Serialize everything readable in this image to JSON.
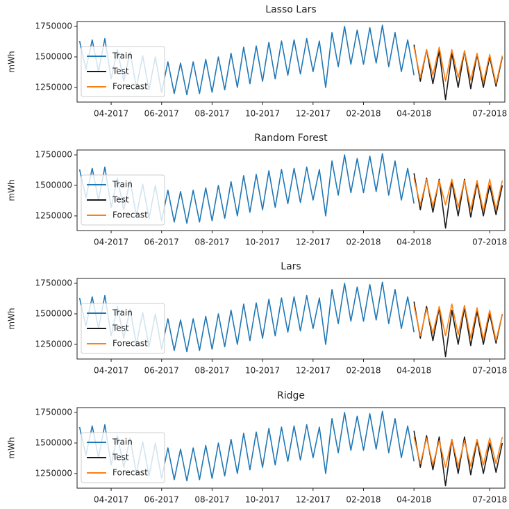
{
  "chart_data": [
    {
      "type": "line",
      "title": "Lasso Lars",
      "ylabel": "mWh",
      "legend": "lower left",
      "xlim": [
        1.65,
        18.6
      ],
      "ylim": [
        1130000,
        1790000
      ],
      "xticks": [
        {
          "value": 3,
          "label": "04-2017"
        },
        {
          "value": 5,
          "label": "06-2017"
        },
        {
          "value": 7,
          "label": "08-2017"
        },
        {
          "value": 9,
          "label": "10-2017"
        },
        {
          "value": 11,
          "label": "12-2017"
        },
        {
          "value": 13,
          "label": "02-2018"
        },
        {
          "value": 15,
          "label": "04-2018"
        },
        {
          "value": 18,
          "label": "07-2018"
        }
      ],
      "yticks": [
        1250000,
        1500000,
        1750000
      ],
      "series": [
        {
          "name": "Train",
          "color": "#1f77b4",
          "x": [
            1.75,
            2,
            2.25,
            2.5,
            2.75,
            3,
            3.25,
            3.5,
            3.75,
            4,
            4.25,
            4.5,
            4.75,
            5,
            5.25,
            5.5,
            5.75,
            6,
            6.25,
            6.5,
            6.75,
            7,
            7.25,
            7.5,
            7.75,
            8,
            8.25,
            8.5,
            8.75,
            9,
            9.25,
            9.5,
            9.75,
            10,
            10.25,
            10.5,
            10.75,
            11,
            11.25,
            11.5,
            11.75,
            12,
            12.25,
            12.5,
            12.75,
            13,
            13.25,
            13.5,
            13.75,
            14,
            14.25,
            14.5,
            14.75,
            15
          ],
          "values": [
            1630000,
            1400000,
            1640000,
            1380000,
            1650000,
            1320000,
            1560000,
            1300000,
            1540000,
            1250000,
            1510000,
            1230000,
            1500000,
            1210000,
            1460000,
            1200000,
            1450000,
            1190000,
            1460000,
            1200000,
            1480000,
            1210000,
            1500000,
            1230000,
            1530000,
            1250000,
            1580000,
            1280000,
            1590000,
            1300000,
            1620000,
            1320000,
            1630000,
            1350000,
            1640000,
            1360000,
            1650000,
            1380000,
            1630000,
            1250000,
            1700000,
            1420000,
            1750000,
            1440000,
            1720000,
            1440000,
            1740000,
            1450000,
            1760000,
            1420000,
            1700000,
            1380000,
            1640000,
            1350000
          ]
        },
        {
          "name": "Test",
          "color": "#1a1a1a",
          "x": [
            15,
            15.25,
            15.5,
            15.75,
            16,
            16.25,
            16.5,
            16.75,
            17,
            17.25,
            17.5,
            17.75,
            18,
            18.25,
            18.5
          ],
          "values": [
            1600000,
            1300000,
            1560000,
            1280000,
            1550000,
            1150000,
            1530000,
            1250000,
            1550000,
            1240000,
            1520000,
            1250000,
            1500000,
            1260000,
            1500000
          ]
        },
        {
          "name": "Forecast",
          "color": "#ff7f0e",
          "x": [
            15,
            15.25,
            15.5,
            15.75,
            16,
            16.25,
            16.5,
            16.75,
            17,
            17.25,
            17.5,
            17.75,
            18,
            18.25,
            18.5
          ],
          "values": [
            1580000,
            1330000,
            1560000,
            1350000,
            1580000,
            1300000,
            1560000,
            1330000,
            1550000,
            1310000,
            1530000,
            1290000,
            1520000,
            1280000,
            1510000
          ]
        }
      ]
    },
    {
      "type": "line",
      "title": "Random Forest",
      "ylabel": "mWh",
      "legend": "lower left",
      "xlim": [
        1.65,
        18.6
      ],
      "ylim": [
        1130000,
        1790000
      ],
      "xticks": [
        {
          "value": 3,
          "label": "04-2017"
        },
        {
          "value": 5,
          "label": "06-2017"
        },
        {
          "value": 7,
          "label": "08-2017"
        },
        {
          "value": 9,
          "label": "10-2017"
        },
        {
          "value": 11,
          "label": "12-2017"
        },
        {
          "value": 13,
          "label": "02-2018"
        },
        {
          "value": 15,
          "label": "04-2018"
        },
        {
          "value": 18,
          "label": "07-2018"
        }
      ],
      "yticks": [
        1250000,
        1500000,
        1750000
      ],
      "series": [
        {
          "name": "Train",
          "color": "#1f77b4",
          "x": [
            1.75,
            2,
            2.25,
            2.5,
            2.75,
            3,
            3.25,
            3.5,
            3.75,
            4,
            4.25,
            4.5,
            4.75,
            5,
            5.25,
            5.5,
            5.75,
            6,
            6.25,
            6.5,
            6.75,
            7,
            7.25,
            7.5,
            7.75,
            8,
            8.25,
            8.5,
            8.75,
            9,
            9.25,
            9.5,
            9.75,
            10,
            10.25,
            10.5,
            10.75,
            11,
            11.25,
            11.5,
            11.75,
            12,
            12.25,
            12.5,
            12.75,
            13,
            13.25,
            13.5,
            13.75,
            14,
            14.25,
            14.5,
            14.75,
            15
          ],
          "values": [
            1630000,
            1400000,
            1640000,
            1380000,
            1650000,
            1320000,
            1560000,
            1300000,
            1540000,
            1250000,
            1510000,
            1230000,
            1500000,
            1210000,
            1460000,
            1200000,
            1450000,
            1190000,
            1460000,
            1200000,
            1480000,
            1210000,
            1500000,
            1230000,
            1530000,
            1250000,
            1580000,
            1280000,
            1590000,
            1300000,
            1620000,
            1320000,
            1630000,
            1350000,
            1640000,
            1360000,
            1650000,
            1380000,
            1630000,
            1250000,
            1700000,
            1420000,
            1750000,
            1440000,
            1720000,
            1440000,
            1740000,
            1450000,
            1760000,
            1420000,
            1700000,
            1380000,
            1640000,
            1350000
          ]
        },
        {
          "name": "Test",
          "color": "#1a1a1a",
          "x": [
            15,
            15.25,
            15.5,
            15.75,
            16,
            16.25,
            16.5,
            16.75,
            17,
            17.25,
            17.5,
            17.75,
            18,
            18.25,
            18.5
          ],
          "values": [
            1600000,
            1300000,
            1560000,
            1280000,
            1550000,
            1150000,
            1530000,
            1250000,
            1550000,
            1240000,
            1520000,
            1250000,
            1500000,
            1260000,
            1500000
          ]
        },
        {
          "name": "Forecast",
          "color": "#ff7f0e",
          "x": [
            15,
            15.25,
            15.5,
            15.75,
            16,
            16.25,
            16.5,
            16.75,
            17,
            17.25,
            17.5,
            17.75,
            18,
            18.25,
            18.5
          ],
          "values": [
            1560000,
            1340000,
            1550000,
            1330000,
            1540000,
            1340000,
            1550000,
            1320000,
            1540000,
            1300000,
            1540000,
            1290000,
            1550000,
            1300000,
            1540000
          ]
        }
      ]
    },
    {
      "type": "line",
      "title": "Lars",
      "ylabel": "mWh",
      "legend": "lower left",
      "xlim": [
        1.65,
        18.6
      ],
      "ylim": [
        1130000,
        1790000
      ],
      "xticks": [
        {
          "value": 3,
          "label": "04-2017"
        },
        {
          "value": 5,
          "label": "06-2017"
        },
        {
          "value": 7,
          "label": "08-2017"
        },
        {
          "value": 9,
          "label": "10-2017"
        },
        {
          "value": 11,
          "label": "12-2017"
        },
        {
          "value": 13,
          "label": "02-2018"
        },
        {
          "value": 15,
          "label": "04-2018"
        },
        {
          "value": 18,
          "label": "07-2018"
        }
      ],
      "yticks": [
        1250000,
        1500000,
        1750000
      ],
      "series": [
        {
          "name": "Train",
          "color": "#1f77b4",
          "x": [
            1.75,
            2,
            2.25,
            2.5,
            2.75,
            3,
            3.25,
            3.5,
            3.75,
            4,
            4.25,
            4.5,
            4.75,
            5,
            5.25,
            5.5,
            5.75,
            6,
            6.25,
            6.5,
            6.75,
            7,
            7.25,
            7.5,
            7.75,
            8,
            8.25,
            8.5,
            8.75,
            9,
            9.25,
            9.5,
            9.75,
            10,
            10.25,
            10.5,
            10.75,
            11,
            11.25,
            11.5,
            11.75,
            12,
            12.25,
            12.5,
            12.75,
            13,
            13.25,
            13.5,
            13.75,
            14,
            14.25,
            14.5,
            14.75,
            15
          ],
          "values": [
            1630000,
            1400000,
            1640000,
            1380000,
            1650000,
            1320000,
            1560000,
            1300000,
            1540000,
            1250000,
            1510000,
            1230000,
            1500000,
            1210000,
            1460000,
            1200000,
            1450000,
            1190000,
            1460000,
            1200000,
            1480000,
            1210000,
            1500000,
            1230000,
            1530000,
            1250000,
            1580000,
            1280000,
            1590000,
            1300000,
            1620000,
            1320000,
            1630000,
            1350000,
            1640000,
            1360000,
            1650000,
            1380000,
            1630000,
            1250000,
            1700000,
            1420000,
            1750000,
            1440000,
            1720000,
            1440000,
            1740000,
            1450000,
            1760000,
            1420000,
            1700000,
            1380000,
            1640000,
            1350000
          ]
        },
        {
          "name": "Test",
          "color": "#1a1a1a",
          "x": [
            15,
            15.25,
            15.5,
            15.75,
            16,
            16.25,
            16.5,
            16.75,
            17,
            17.25,
            17.5,
            17.75,
            18,
            18.25,
            18.5
          ],
          "values": [
            1600000,
            1300000,
            1560000,
            1280000,
            1550000,
            1150000,
            1530000,
            1250000,
            1550000,
            1240000,
            1520000,
            1250000,
            1500000,
            1260000,
            1500000
          ]
        },
        {
          "name": "Forecast",
          "color": "#ff7f0e",
          "x": [
            15,
            15.25,
            15.5,
            15.75,
            16,
            16.25,
            16.5,
            16.75,
            17,
            17.25,
            17.5,
            17.75,
            18,
            18.25,
            18.5
          ],
          "values": [
            1570000,
            1320000,
            1540000,
            1340000,
            1560000,
            1320000,
            1580000,
            1330000,
            1570000,
            1300000,
            1550000,
            1290000,
            1530000,
            1280000,
            1500000
          ]
        }
      ]
    },
    {
      "type": "line",
      "title": "Ridge",
      "ylabel": "mWh",
      "legend": "lower left",
      "xlim": [
        1.65,
        18.6
      ],
      "ylim": [
        1130000,
        1790000
      ],
      "xticks": [
        {
          "value": 3,
          "label": "04-2017"
        },
        {
          "value": 5,
          "label": "06-2017"
        },
        {
          "value": 7,
          "label": "08-2017"
        },
        {
          "value": 9,
          "label": "10-2017"
        },
        {
          "value": 11,
          "label": "12-2017"
        },
        {
          "value": 13,
          "label": "02-2018"
        },
        {
          "value": 15,
          "label": "04-2018"
        },
        {
          "value": 18,
          "label": "07-2018"
        }
      ],
      "yticks": [
        1250000,
        1500000,
        1750000
      ],
      "series": [
        {
          "name": "Train",
          "color": "#1f77b4",
          "x": [
            1.75,
            2,
            2.25,
            2.5,
            2.75,
            3,
            3.25,
            3.5,
            3.75,
            4,
            4.25,
            4.5,
            4.75,
            5,
            5.25,
            5.5,
            5.75,
            6,
            6.25,
            6.5,
            6.75,
            7,
            7.25,
            7.5,
            7.75,
            8,
            8.25,
            8.5,
            8.75,
            9,
            9.25,
            9.5,
            9.75,
            10,
            10.25,
            10.5,
            10.75,
            11,
            11.25,
            11.5,
            11.75,
            12,
            12.25,
            12.5,
            12.75,
            13,
            13.25,
            13.5,
            13.75,
            14,
            14.25,
            14.5,
            14.75,
            15
          ],
          "values": [
            1630000,
            1400000,
            1640000,
            1380000,
            1650000,
            1320000,
            1560000,
            1300000,
            1540000,
            1250000,
            1510000,
            1230000,
            1500000,
            1210000,
            1460000,
            1200000,
            1450000,
            1190000,
            1460000,
            1200000,
            1480000,
            1210000,
            1500000,
            1230000,
            1530000,
            1250000,
            1580000,
            1280000,
            1590000,
            1300000,
            1620000,
            1320000,
            1630000,
            1350000,
            1640000,
            1360000,
            1650000,
            1380000,
            1630000,
            1250000,
            1700000,
            1420000,
            1750000,
            1440000,
            1720000,
            1440000,
            1740000,
            1450000,
            1760000,
            1420000,
            1700000,
            1380000,
            1640000,
            1350000
          ]
        },
        {
          "name": "Test",
          "color": "#1a1a1a",
          "x": [
            15,
            15.25,
            15.5,
            15.75,
            16,
            16.25,
            16.5,
            16.75,
            17,
            17.25,
            17.5,
            17.75,
            18,
            18.25,
            18.5
          ],
          "values": [
            1600000,
            1300000,
            1560000,
            1280000,
            1550000,
            1150000,
            1530000,
            1250000,
            1550000,
            1240000,
            1520000,
            1250000,
            1500000,
            1260000,
            1500000
          ]
        },
        {
          "name": "Forecast",
          "color": "#ff7f0e",
          "x": [
            15,
            15.25,
            15.5,
            15.75,
            16,
            16.25,
            16.5,
            16.75,
            17,
            17.25,
            17.5,
            17.75,
            18,
            18.25,
            18.5
          ],
          "values": [
            1550000,
            1330000,
            1540000,
            1320000,
            1520000,
            1300000,
            1530000,
            1310000,
            1520000,
            1310000,
            1530000,
            1320000,
            1540000,
            1330000,
            1550000
          ]
        }
      ]
    }
  ]
}
